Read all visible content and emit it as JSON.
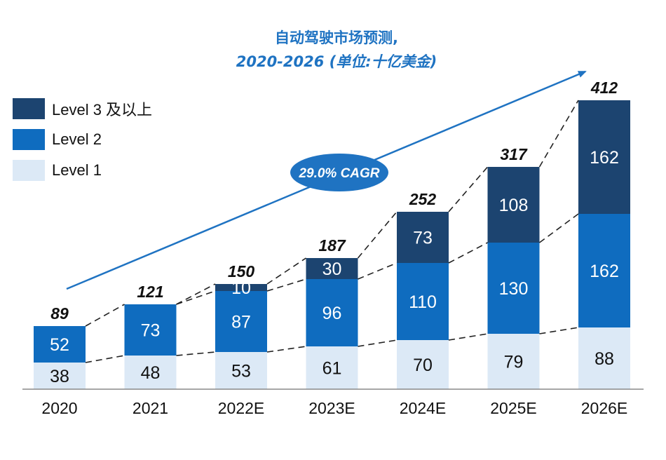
{
  "chart_data": {
    "type": "bar",
    "stacked": true,
    "title": "自动驾驶市场预测,",
    "subtitle": "2020-2026 (单位:十亿美金)",
    "categories": [
      "2020",
      "2021",
      "2022E",
      "2023E",
      "2024E",
      "2025E",
      "2026E"
    ],
    "series": [
      {
        "name": "Level 1",
        "color": "#dce9f6",
        "values": [
          38,
          48,
          53,
          61,
          70,
          79,
          88
        ]
      },
      {
        "name": "Level 2",
        "color": "#0f6cbf",
        "values": [
          52,
          73,
          87,
          96,
          110,
          130,
          162
        ]
      },
      {
        "name": "Level 3 及以上",
        "color": "#1c4470",
        "values": [
          null,
          null,
          10,
          30,
          73,
          108,
          162
        ]
      }
    ],
    "series_labels": [
      [
        "38",
        "48",
        "53",
        "61",
        "70",
        "79",
        "88"
      ],
      [
        "52",
        "73",
        "87",
        "96",
        "110",
        "130",
        "162"
      ],
      [
        "",
        "",
        "10",
        "30",
        "73",
        "108",
        "162"
      ]
    ],
    "totals": [
      89,
      121,
      150,
      187,
      252,
      317,
      412
    ],
    "annotation": "29.0% CAGR",
    "legend_placement": "top-left",
    "grid": false
  }
}
